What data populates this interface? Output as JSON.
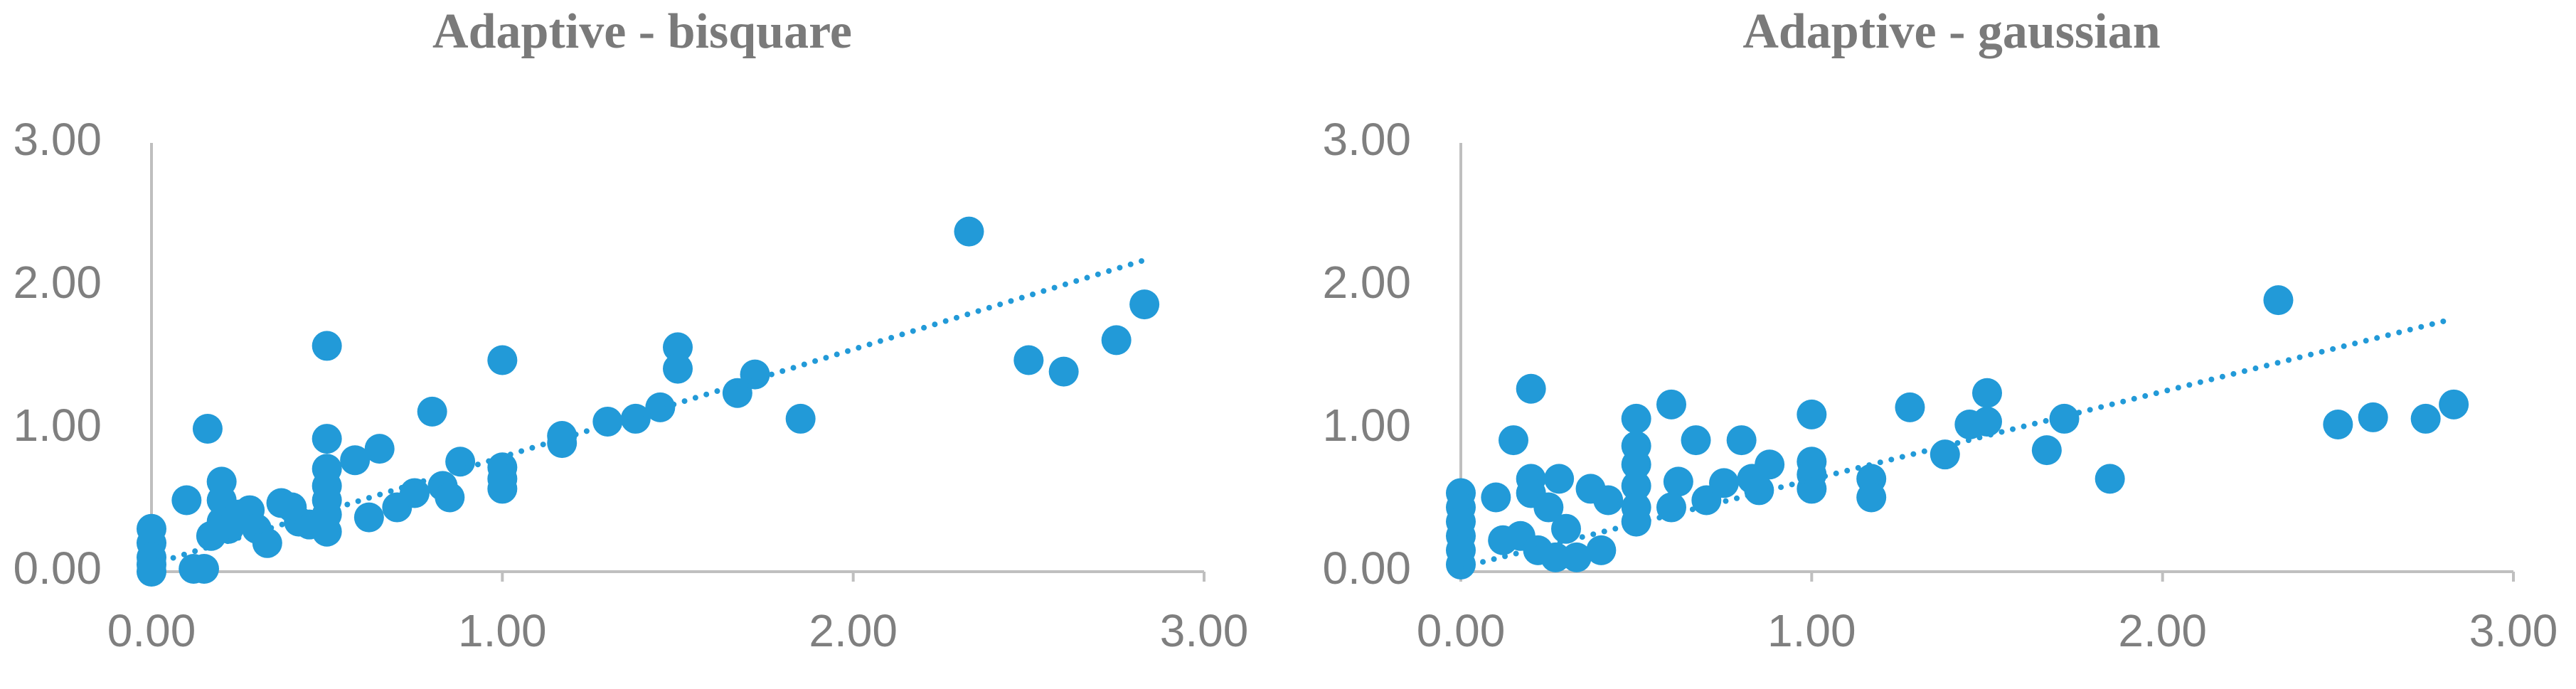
{
  "chart_data": [
    {
      "type": "scatter",
      "title": "Adaptive - bisquare",
      "series": [
        {
          "color": "#229ad8",
          "x": [
            0,
            0,
            0,
            0,
            0,
            0.1,
            0.12,
            0.15,
            0.16,
            0.17,
            0.2,
            0.2,
            0.2,
            0.22,
            0.25,
            0.28,
            0.3,
            0.33,
            0.37,
            0.4,
            0.42,
            0.45,
            0.5,
            0.5,
            0.5,
            0.5,
            0.5,
            0.5,
            0.5,
            0.58,
            0.62,
            0.65,
            0.7,
            0.75,
            0.8,
            0.83,
            0.85,
            0.88,
            1.0,
            1.0,
            1.0,
            1.0,
            1.17,
            1.17,
            1.3,
            1.38,
            1.45,
            1.5,
            1.5,
            1.67,
            1.72,
            1.85,
            2.33,
            2.5,
            2.6,
            2.75,
            2.83
          ],
          "values": [
            0.3,
            0.2,
            0.1,
            0.05,
            0,
            0.5,
            0.02,
            0.02,
            1.0,
            0.25,
            0.63,
            0.5,
            0.35,
            0.3,
            0.4,
            0.43,
            0.3,
            0.2,
            0.48,
            0.45,
            0.35,
            0.33,
            1.58,
            0.93,
            0.72,
            0.6,
            0.5,
            0.4,
            0.28,
            0.78,
            0.38,
            0.86,
            0.45,
            0.55,
            1.12,
            0.6,
            0.52,
            0.77,
            1.48,
            0.73,
            0.65,
            0.58,
            0.95,
            0.9,
            1.05,
            1.07,
            1.15,
            1.57,
            1.42,
            1.25,
            1.38,
            1.07,
            2.38,
            1.48,
            1.4,
            1.62,
            1.87
          ]
        }
      ],
      "trendline": {
        "x": [
          0,
          2.83
        ],
        "y": [
          0.05,
          2.18
        ],
        "color": "#229ad8",
        "style": "dotted"
      },
      "xlim": [
        0,
        3
      ],
      "ylim": [
        0,
        3
      ],
      "xticks": [
        {
          "value": 0,
          "label": "0.00"
        },
        {
          "value": 1,
          "label": "1.00"
        },
        {
          "value": 2,
          "label": "2.00"
        },
        {
          "value": 3,
          "label": "3.00"
        }
      ],
      "yticks": [
        {
          "value": 0,
          "label": "0.00"
        },
        {
          "value": 1,
          "label": "1.00"
        },
        {
          "value": 2,
          "label": "2.00"
        },
        {
          "value": 3,
          "label": "3.00"
        }
      ],
      "grid": false
    },
    {
      "type": "scatter",
      "title": "Adaptive - gaussian",
      "series": [
        {
          "color": "#229ad8",
          "x": [
            0,
            0,
            0,
            0,
            0,
            0,
            0.1,
            0.12,
            0.15,
            0.17,
            0.2,
            0.2,
            0.2,
            0.22,
            0.25,
            0.27,
            0.28,
            0.3,
            0.33,
            0.37,
            0.4,
            0.42,
            0.5,
            0.5,
            0.5,
            0.5,
            0.5,
            0.5,
            0.6,
            0.62,
            0.6,
            0.67,
            0.7,
            0.75,
            0.8,
            0.83,
            0.85,
            0.88,
            1.0,
            1.0,
            1.0,
            1.0,
            1.17,
            1.17,
            1.28,
            1.38,
            1.45,
            1.5,
            1.5,
            1.67,
            1.72,
            1.85,
            2.33,
            2.5,
            2.6,
            2.75,
            2.83
          ],
          "values": [
            0.55,
            0.45,
            0.35,
            0.25,
            0.15,
            0.05,
            0.52,
            0.22,
            0.92,
            0.25,
            1.28,
            0.65,
            0.55,
            0.15,
            0.45,
            0.1,
            0.65,
            0.3,
            0.1,
            0.58,
            0.15,
            0.5,
            1.07,
            0.88,
            0.75,
            0.6,
            0.45,
            0.35,
            1.17,
            0.63,
            0.45,
            0.92,
            0.5,
            0.62,
            0.92,
            0.65,
            0.57,
            0.75,
            1.1,
            0.77,
            0.68,
            0.58,
            0.65,
            0.52,
            1.15,
            0.82,
            1.03,
            1.25,
            1.05,
            0.85,
            1.07,
            0.65,
            1.9,
            1.03,
            1.08,
            1.07,
            1.17
          ]
        }
      ],
      "trendline": {
        "x": [
          0,
          2.83
        ],
        "y": [
          0.03,
          1.77
        ],
        "color": "#229ad8",
        "style": "dotted"
      },
      "xlim": [
        0,
        3
      ],
      "ylim": [
        0,
        3
      ],
      "xticks": [
        {
          "value": 0,
          "label": "0.00"
        },
        {
          "value": 1,
          "label": "1.00"
        },
        {
          "value": 2,
          "label": "2.00"
        },
        {
          "value": 3,
          "label": "3.00"
        }
      ],
      "yticks": [
        {
          "value": 0,
          "label": "0.00"
        },
        {
          "value": 1,
          "label": "1.00"
        },
        {
          "value": 2,
          "label": "2.00"
        },
        {
          "value": 3,
          "label": "3.00"
        }
      ],
      "grid": false
    }
  ]
}
